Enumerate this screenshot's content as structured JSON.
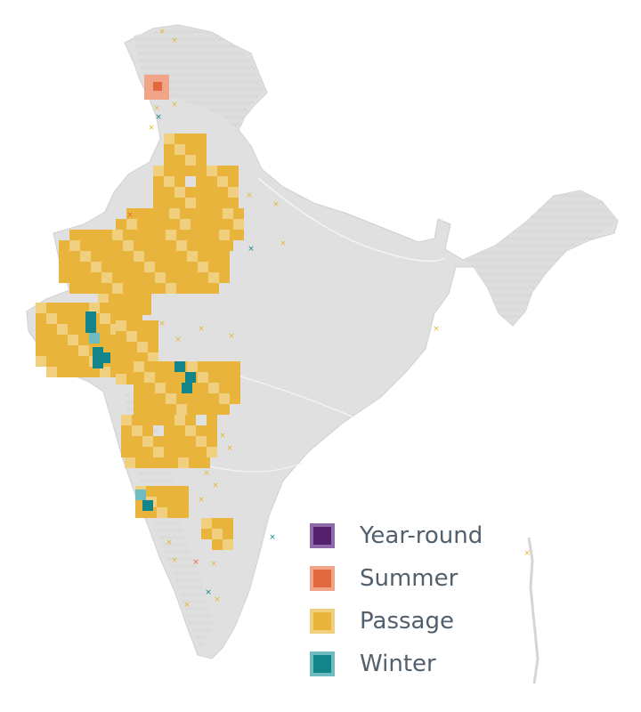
{
  "map": {
    "land_color": "#dcdcdc",
    "relief_color": "#c8c8c8",
    "water_color": "#ffffff",
    "colors": {
      "year_round": {
        "fill": "#54206b",
        "border": "#8f6aa8"
      },
      "summer": {
        "fill": "#e2683f",
        "border": "#f1a487"
      },
      "passage": {
        "fill": "#e8b43c",
        "border": "#f0cf7e"
      },
      "winter": {
        "fill": "#12858a",
        "border": "#6fbcc0"
      }
    }
  },
  "legend": {
    "items": [
      {
        "key": "year_round",
        "label": "Year-round"
      },
      {
        "key": "summer",
        "label": "Summer"
      },
      {
        "key": "passage",
        "label": "Passage"
      },
      {
        "key": "winter",
        "label": "Winter"
      }
    ]
  }
}
